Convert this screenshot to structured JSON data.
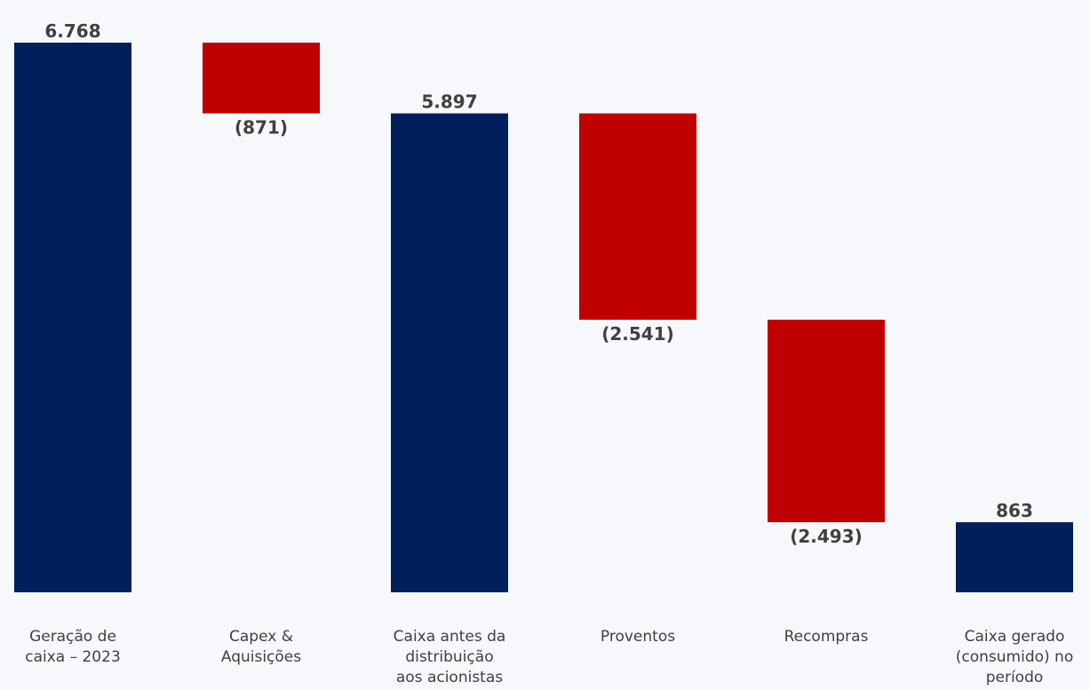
{
  "chart_data": {
    "type": "waterfall",
    "title": "",
    "xlabel": "",
    "ylabel": "",
    "grid": false,
    "legend": "none",
    "ylim": [
      0,
      6768
    ],
    "categories": [
      [
        "Geração de",
        "caixa – 2023"
      ],
      [
        "Capex &",
        "Aquisições"
      ],
      [
        "Caixa antes da",
        "distribuição",
        "aos acionistas"
      ],
      [
        "Proventos"
      ],
      [
        "Recompras"
      ],
      [
        "Caixa gerado",
        "(consumido) no",
        "período"
      ]
    ],
    "bars": [
      {
        "kind": "total",
        "value": 6768,
        "label": "6.768"
      },
      {
        "kind": "delta",
        "value": -871,
        "label": "(871)"
      },
      {
        "kind": "total",
        "value": 5897,
        "label": "5.897"
      },
      {
        "kind": "delta",
        "value": -2541,
        "label": "(2.541)"
      },
      {
        "kind": "delta",
        "value": -2493,
        "label": "(2.493)"
      },
      {
        "kind": "total",
        "value": 863,
        "label": "863"
      }
    ],
    "colors": {
      "total": "#001F5B",
      "negative": "#C00000",
      "background": "#F7F8FC"
    }
  }
}
